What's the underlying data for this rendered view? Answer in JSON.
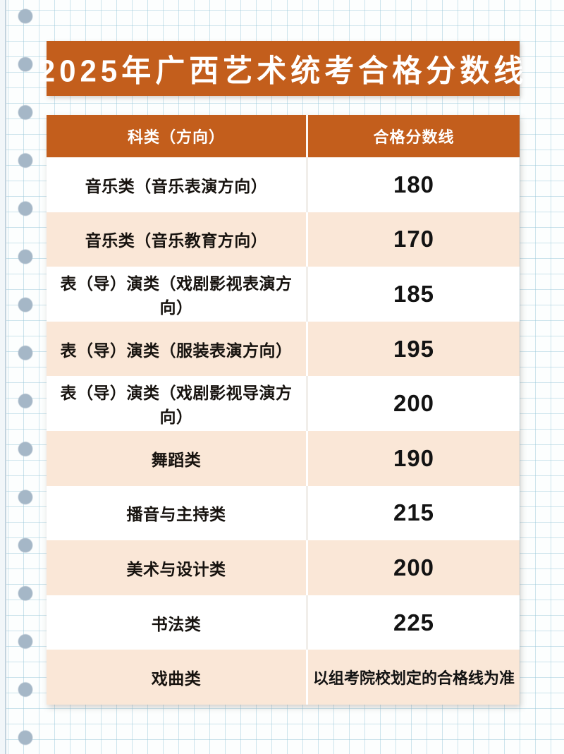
{
  "page": {
    "title": "2025年广西艺术统考合格分数线"
  },
  "table": {
    "columns": [
      "科类（方向）",
      "合格分数线"
    ],
    "rows": [
      {
        "category": "音乐类（音乐表演方向）",
        "score": "180"
      },
      {
        "category": "音乐类（音乐教育方向）",
        "score": "170"
      },
      {
        "category": "表（导）演类（戏剧影视表演方向）",
        "score": "185"
      },
      {
        "category": "表（导）演类（服装表演方向）",
        "score": "195"
      },
      {
        "category": "表（导）演类（戏剧影视导演方向）",
        "score": "200"
      },
      {
        "category": "舞蹈类",
        "score": "190"
      },
      {
        "category": "播音与主持类",
        "score": "215"
      },
      {
        "category": "美术与设计类",
        "score": "200"
      },
      {
        "category": "书法类",
        "score": "225"
      },
      {
        "category": "戏曲类",
        "score": "以组考院校划定的合格线为准"
      }
    ]
  },
  "colors": {
    "accent_orange": "#C35E1C",
    "row_peach": "#FAE7D7",
    "paper": "#FCFEFE",
    "grid_line": "#BCD9E5",
    "binding_dot": "#A5B7C7",
    "text": "#141414"
  }
}
